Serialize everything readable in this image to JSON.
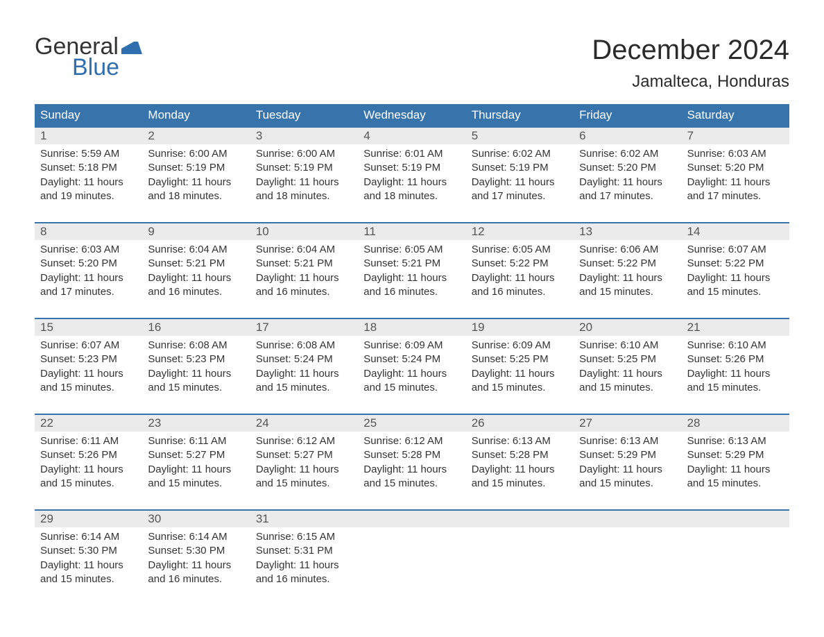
{
  "logo": {
    "word1": "General",
    "word2": "Blue",
    "text_color": "#333333",
    "blue_color": "#2f6fb0"
  },
  "header": {
    "month_title": "December 2024",
    "location": "Jamalteca, Honduras"
  },
  "colors": {
    "header_bg": "#3874ac",
    "header_text": "#ffffff",
    "daynum_bg": "#ebebeb",
    "daynum_text": "#555555",
    "body_text": "#333333",
    "week_border": "#3874ac",
    "page_bg": "#ffffff"
  },
  "fonts": {
    "month_title_size_pt": 30,
    "location_size_pt": 18,
    "dow_size_pt": 13,
    "daynum_size_pt": 13,
    "body_size_pt": 11
  },
  "calendar": {
    "columns": 7,
    "days_of_week": [
      "Sunday",
      "Monday",
      "Tuesday",
      "Wednesday",
      "Thursday",
      "Friday",
      "Saturday"
    ],
    "weeks": [
      {
        "days": [
          {
            "num": "1",
            "sunrise": "Sunrise: 5:59 AM",
            "sunset": "Sunset: 5:18 PM",
            "daylight1": "Daylight: 11 hours",
            "daylight2": "and 19 minutes."
          },
          {
            "num": "2",
            "sunrise": "Sunrise: 6:00 AM",
            "sunset": "Sunset: 5:19 PM",
            "daylight1": "Daylight: 11 hours",
            "daylight2": "and 18 minutes."
          },
          {
            "num": "3",
            "sunrise": "Sunrise: 6:00 AM",
            "sunset": "Sunset: 5:19 PM",
            "daylight1": "Daylight: 11 hours",
            "daylight2": "and 18 minutes."
          },
          {
            "num": "4",
            "sunrise": "Sunrise: 6:01 AM",
            "sunset": "Sunset: 5:19 PM",
            "daylight1": "Daylight: 11 hours",
            "daylight2": "and 18 minutes."
          },
          {
            "num": "5",
            "sunrise": "Sunrise: 6:02 AM",
            "sunset": "Sunset: 5:19 PM",
            "daylight1": "Daylight: 11 hours",
            "daylight2": "and 17 minutes."
          },
          {
            "num": "6",
            "sunrise": "Sunrise: 6:02 AM",
            "sunset": "Sunset: 5:20 PM",
            "daylight1": "Daylight: 11 hours",
            "daylight2": "and 17 minutes."
          },
          {
            "num": "7",
            "sunrise": "Sunrise: 6:03 AM",
            "sunset": "Sunset: 5:20 PM",
            "daylight1": "Daylight: 11 hours",
            "daylight2": "and 17 minutes."
          }
        ]
      },
      {
        "days": [
          {
            "num": "8",
            "sunrise": "Sunrise: 6:03 AM",
            "sunset": "Sunset: 5:20 PM",
            "daylight1": "Daylight: 11 hours",
            "daylight2": "and 17 minutes."
          },
          {
            "num": "9",
            "sunrise": "Sunrise: 6:04 AM",
            "sunset": "Sunset: 5:21 PM",
            "daylight1": "Daylight: 11 hours",
            "daylight2": "and 16 minutes."
          },
          {
            "num": "10",
            "sunrise": "Sunrise: 6:04 AM",
            "sunset": "Sunset: 5:21 PM",
            "daylight1": "Daylight: 11 hours",
            "daylight2": "and 16 minutes."
          },
          {
            "num": "11",
            "sunrise": "Sunrise: 6:05 AM",
            "sunset": "Sunset: 5:21 PM",
            "daylight1": "Daylight: 11 hours",
            "daylight2": "and 16 minutes."
          },
          {
            "num": "12",
            "sunrise": "Sunrise: 6:05 AM",
            "sunset": "Sunset: 5:22 PM",
            "daylight1": "Daylight: 11 hours",
            "daylight2": "and 16 minutes."
          },
          {
            "num": "13",
            "sunrise": "Sunrise: 6:06 AM",
            "sunset": "Sunset: 5:22 PM",
            "daylight1": "Daylight: 11 hours",
            "daylight2": "and 15 minutes."
          },
          {
            "num": "14",
            "sunrise": "Sunrise: 6:07 AM",
            "sunset": "Sunset: 5:22 PM",
            "daylight1": "Daylight: 11 hours",
            "daylight2": "and 15 minutes."
          }
        ]
      },
      {
        "days": [
          {
            "num": "15",
            "sunrise": "Sunrise: 6:07 AM",
            "sunset": "Sunset: 5:23 PM",
            "daylight1": "Daylight: 11 hours",
            "daylight2": "and 15 minutes."
          },
          {
            "num": "16",
            "sunrise": "Sunrise: 6:08 AM",
            "sunset": "Sunset: 5:23 PM",
            "daylight1": "Daylight: 11 hours",
            "daylight2": "and 15 minutes."
          },
          {
            "num": "17",
            "sunrise": "Sunrise: 6:08 AM",
            "sunset": "Sunset: 5:24 PM",
            "daylight1": "Daylight: 11 hours",
            "daylight2": "and 15 minutes."
          },
          {
            "num": "18",
            "sunrise": "Sunrise: 6:09 AM",
            "sunset": "Sunset: 5:24 PM",
            "daylight1": "Daylight: 11 hours",
            "daylight2": "and 15 minutes."
          },
          {
            "num": "19",
            "sunrise": "Sunrise: 6:09 AM",
            "sunset": "Sunset: 5:25 PM",
            "daylight1": "Daylight: 11 hours",
            "daylight2": "and 15 minutes."
          },
          {
            "num": "20",
            "sunrise": "Sunrise: 6:10 AM",
            "sunset": "Sunset: 5:25 PM",
            "daylight1": "Daylight: 11 hours",
            "daylight2": "and 15 minutes."
          },
          {
            "num": "21",
            "sunrise": "Sunrise: 6:10 AM",
            "sunset": "Sunset: 5:26 PM",
            "daylight1": "Daylight: 11 hours",
            "daylight2": "and 15 minutes."
          }
        ]
      },
      {
        "days": [
          {
            "num": "22",
            "sunrise": "Sunrise: 6:11 AM",
            "sunset": "Sunset: 5:26 PM",
            "daylight1": "Daylight: 11 hours",
            "daylight2": "and 15 minutes."
          },
          {
            "num": "23",
            "sunrise": "Sunrise: 6:11 AM",
            "sunset": "Sunset: 5:27 PM",
            "daylight1": "Daylight: 11 hours",
            "daylight2": "and 15 minutes."
          },
          {
            "num": "24",
            "sunrise": "Sunrise: 6:12 AM",
            "sunset": "Sunset: 5:27 PM",
            "daylight1": "Daylight: 11 hours",
            "daylight2": "and 15 minutes."
          },
          {
            "num": "25",
            "sunrise": "Sunrise: 6:12 AM",
            "sunset": "Sunset: 5:28 PM",
            "daylight1": "Daylight: 11 hours",
            "daylight2": "and 15 minutes."
          },
          {
            "num": "26",
            "sunrise": "Sunrise: 6:13 AM",
            "sunset": "Sunset: 5:28 PM",
            "daylight1": "Daylight: 11 hours",
            "daylight2": "and 15 minutes."
          },
          {
            "num": "27",
            "sunrise": "Sunrise: 6:13 AM",
            "sunset": "Sunset: 5:29 PM",
            "daylight1": "Daylight: 11 hours",
            "daylight2": "and 15 minutes."
          },
          {
            "num": "28",
            "sunrise": "Sunrise: 6:13 AM",
            "sunset": "Sunset: 5:29 PM",
            "daylight1": "Daylight: 11 hours",
            "daylight2": "and 15 minutes."
          }
        ]
      },
      {
        "days": [
          {
            "num": "29",
            "sunrise": "Sunrise: 6:14 AM",
            "sunset": "Sunset: 5:30 PM",
            "daylight1": "Daylight: 11 hours",
            "daylight2": "and 15 minutes."
          },
          {
            "num": "30",
            "sunrise": "Sunrise: 6:14 AM",
            "sunset": "Sunset: 5:30 PM",
            "daylight1": "Daylight: 11 hours",
            "daylight2": "and 16 minutes."
          },
          {
            "num": "31",
            "sunrise": "Sunrise: 6:15 AM",
            "sunset": "Sunset: 5:31 PM",
            "daylight1": "Daylight: 11 hours",
            "daylight2": "and 16 minutes."
          },
          {
            "num": "",
            "sunrise": "",
            "sunset": "",
            "daylight1": "",
            "daylight2": ""
          },
          {
            "num": "",
            "sunrise": "",
            "sunset": "",
            "daylight1": "",
            "daylight2": ""
          },
          {
            "num": "",
            "sunrise": "",
            "sunset": "",
            "daylight1": "",
            "daylight2": ""
          },
          {
            "num": "",
            "sunrise": "",
            "sunset": "",
            "daylight1": "",
            "daylight2": ""
          }
        ]
      }
    ]
  }
}
